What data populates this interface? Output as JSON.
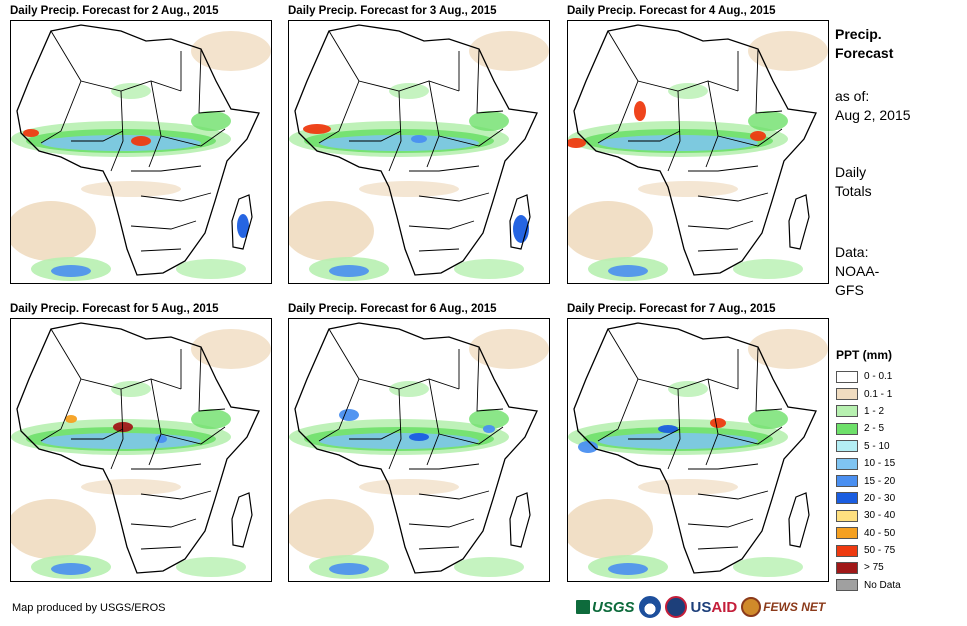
{
  "panels": [
    {
      "title": "Daily Precip. Forecast for 2 Aug., 2015"
    },
    {
      "title": "Daily Precip. Forecast for 3 Aug., 2015"
    },
    {
      "title": "Daily Precip. Forecast for 4 Aug., 2015"
    },
    {
      "title": "Daily Precip. Forecast for 5 Aug., 2015"
    },
    {
      "title": "Daily Precip. Forecast for 6 Aug., 2015"
    },
    {
      "title": "Daily Precip. Forecast for 7 Aug., 2015"
    }
  ],
  "sidebar": {
    "title_line1": "Precip.",
    "title_line2": "Forecast",
    "asof_line1": "as of:",
    "asof_line2": "Aug 2, 2015",
    "totals_line1": "Daily",
    "totals_line2": "Totals",
    "data_line1": "Data:",
    "data_line2": "NOAA-",
    "data_line3": "GFS"
  },
  "legend": {
    "title": "PPT (mm)",
    "items": [
      {
        "label": "0 - 0.1",
        "color": "#ffffff"
      },
      {
        "label": "0.1 - 1",
        "color": "#f0dcc0"
      },
      {
        "label": "1 - 2",
        "color": "#b7f0b0"
      },
      {
        "label": "2 - 5",
        "color": "#6ee06a"
      },
      {
        "label": "5 - 10",
        "color": "#b4eef4"
      },
      {
        "label": "10 - 15",
        "color": "#7fc4f2"
      },
      {
        "label": "15 - 20",
        "color": "#4a8ff0"
      },
      {
        "label": "20 - 30",
        "color": "#1a5de0"
      },
      {
        "label": "30 - 40",
        "color": "#ffe080"
      },
      {
        "label": "40 - 50",
        "color": "#f5a020"
      },
      {
        "label": "50 - 75",
        "color": "#ee3a10"
      },
      {
        "label": "> 75",
        "color": "#a01818"
      },
      {
        "label": "No Data",
        "color": "#a0a0a0"
      }
    ]
  },
  "footer": {
    "credit": "Map produced by USGS/EROS"
  },
  "logos": {
    "usgs": "USGS",
    "usaid_us": "US",
    "usaid_aid": "AID",
    "fews": "FEWS NET"
  }
}
